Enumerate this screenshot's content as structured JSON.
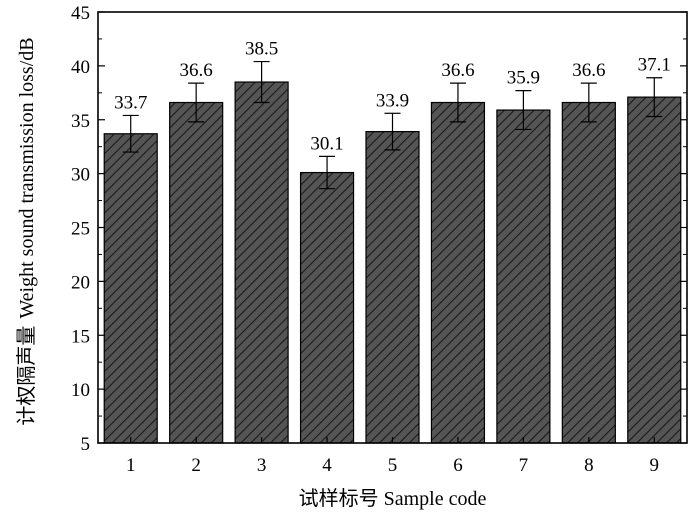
{
  "chart_data": {
    "type": "bar",
    "categories": [
      "1",
      "2",
      "3",
      "4",
      "5",
      "6",
      "7",
      "8",
      "9"
    ],
    "values": [
      33.7,
      36.6,
      38.5,
      30.1,
      33.9,
      36.6,
      35.9,
      36.6,
      37.1
    ],
    "error": [
      1.7,
      1.8,
      1.9,
      1.5,
      1.7,
      1.8,
      1.8,
      1.8,
      1.8
    ],
    "data_labels": [
      "33.7",
      "36.6",
      "38.5",
      "30.1",
      "33.9",
      "36.6",
      "35.9",
      "36.6",
      "37.1"
    ],
    "xlabel": "试样标号 Sample code",
    "ylabel_cn": "计权隔声量",
    "ylabel_en": "Weight sound transmission loss/dB",
    "ylim": [
      5,
      45
    ],
    "yticks": [
      "5",
      "10",
      "15",
      "20",
      "25",
      "30",
      "35",
      "40",
      "45"
    ],
    "bar_color": "#555555",
    "bar_pattern": "diagonal-hatch",
    "grid": false
  }
}
